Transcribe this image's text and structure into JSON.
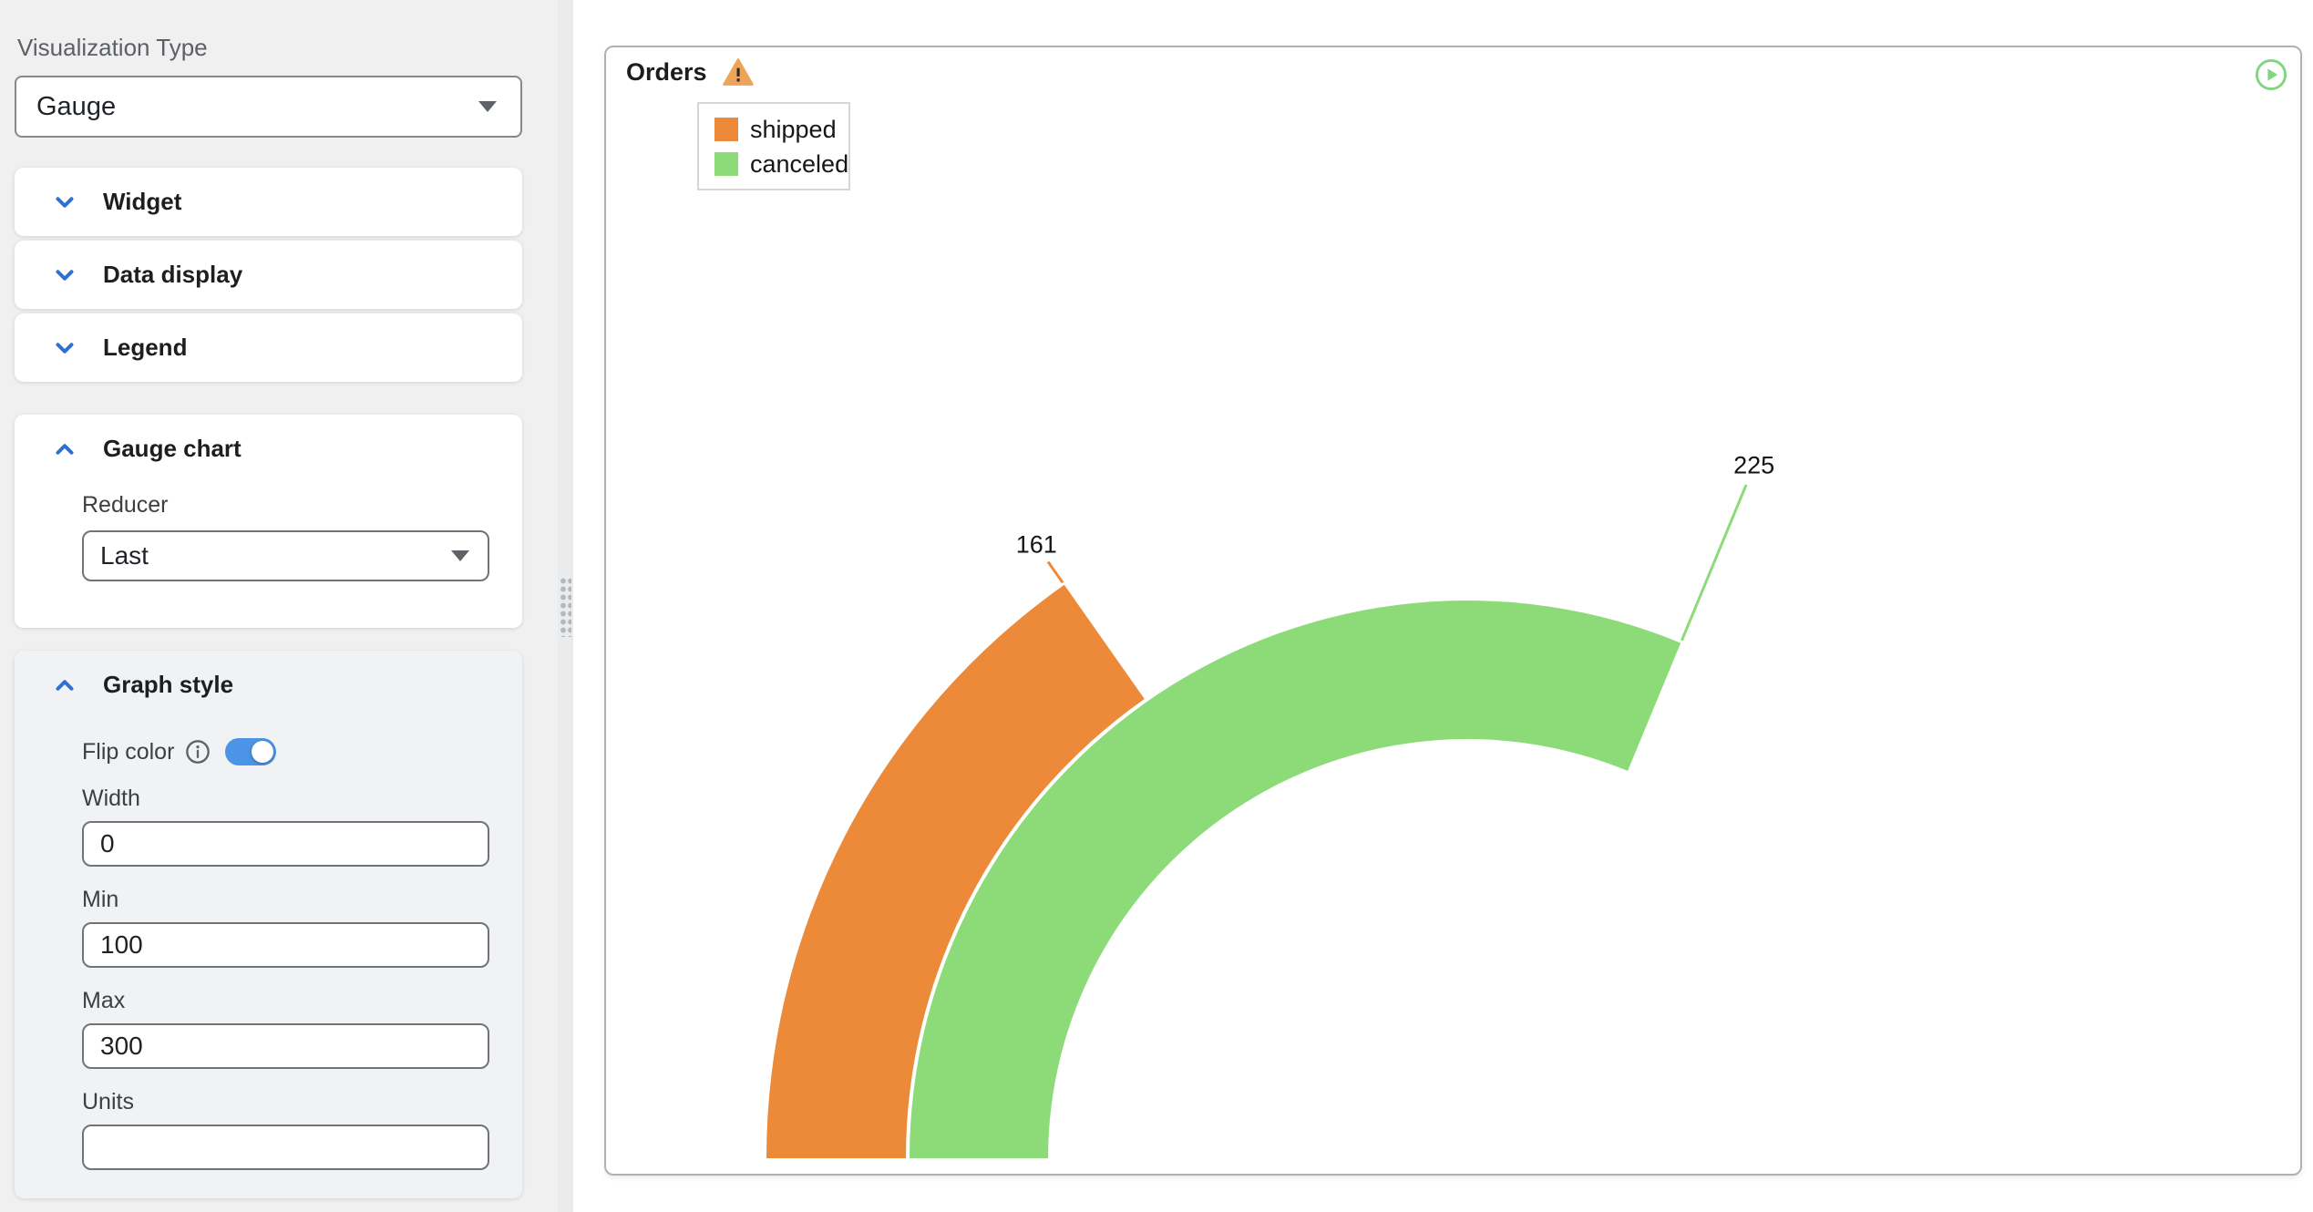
{
  "sidebar": {
    "visualization_type_label": "Visualization Type",
    "visualization_type_value": "Gauge",
    "sections": [
      {
        "label": "Widget",
        "expanded": false
      },
      {
        "label": "Data display",
        "expanded": false
      },
      {
        "label": "Legend",
        "expanded": false
      }
    ],
    "gauge_chart": {
      "title": "Gauge chart",
      "reducer_label": "Reducer",
      "reducer_value": "Last"
    },
    "graph_style": {
      "title": "Graph style",
      "flip_color_label": "Flip color",
      "flip_color_on": true,
      "fields": [
        {
          "label": "Width",
          "value": "0"
        },
        {
          "label": "Min",
          "value": "100"
        },
        {
          "label": "Max",
          "value": "300"
        },
        {
          "label": "Units",
          "value": ""
        }
      ]
    }
  },
  "panel": {
    "title": "Orders",
    "has_warning": true,
    "legend": [
      {
        "label": "shipped",
        "color": "#ed8a39"
      },
      {
        "label": "canceled",
        "color": "#8cdb78"
      }
    ]
  },
  "chart_data": {
    "type": "gauge",
    "title": "Orders",
    "min": 100,
    "max": 300,
    "start_angle_deg": 180,
    "end_angle_deg": 0,
    "series": [
      {
        "name": "shipped",
        "value": 161,
        "color": "#ed8a39"
      },
      {
        "name": "canceled",
        "value": 225,
        "color": "#8cdb78"
      }
    ]
  },
  "icons": {
    "collapsed_section": "chevron-down",
    "expanded_section": "chevron-up",
    "select_caret": "caret-down",
    "flip_color_help": "info-circle",
    "panel_warning": "warning-triangle",
    "run_query": "play-circle",
    "splitter_grip": "drag-dots"
  },
  "colors": {
    "accent_blue": "#2f6fd1",
    "toggle_blue": "#4b94e6",
    "warning_orange": "#eda458",
    "play_green": "#7fd67f",
    "sidebar_bg": "#f0f0f1",
    "graph_card_bg": "#f0f2f4"
  }
}
